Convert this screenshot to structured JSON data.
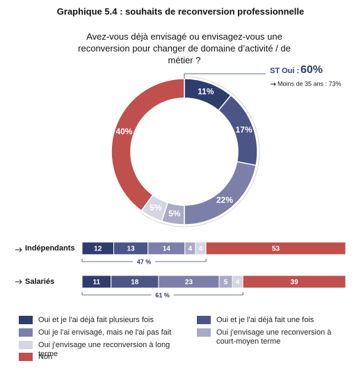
{
  "title": "Graphique 5.4 : souhaits de reconversion professionnelle",
  "subtitle": "Avez-vous déjà envisagé ou envisagez-vous une reconversion pour changer de domaine d’activité / de métier ?",
  "chart_data": [
    {
      "type": "donut",
      "values": [
        11,
        17,
        22,
        5,
        5,
        40
      ],
      "value_labels": [
        "11%",
        "17%",
        "22%",
        "5%",
        "5%",
        "40%"
      ],
      "colors": [
        "#2e3d6b",
        "#4b5586",
        "#7c80a8",
        "#a9aac6",
        "#d5d5e3",
        "#c0504d"
      ],
      "callout": {
        "label": "ST Oui :",
        "value": 60,
        "value_label": "60%"
      },
      "note": "Moins de 35 ans : 73%"
    },
    {
      "type": "bar",
      "orientation": "horizontal",
      "stacked": true,
      "categories": [
        "Indépendants",
        "Salariés"
      ],
      "xlim": [
        0,
        100
      ],
      "series": [
        {
          "name": "Oui et je l'ai déjà fait plusieurs fois",
          "color": "#2e3d6b",
          "values": [
            12,
            11
          ]
        },
        {
          "name": "Oui et je l'ai déjà fait une fois",
          "color": "#4b5586",
          "values": [
            13,
            18
          ]
        },
        {
          "name": "Oui je l'ai envisagé, mais ne l'ai pas fait",
          "color": "#7c80a8",
          "values": [
            14,
            23
          ]
        },
        {
          "name": "Oui j'envisage une reconversion à court-moyen terme",
          "color": "#a9aac6",
          "values": [
            4,
            5
          ]
        },
        {
          "name": "Oui j'envisage une reconversion à long terme",
          "color": "#d5d5e3",
          "values": [
            4,
            4
          ]
        },
        {
          "name": "Non",
          "color": "#c0504d",
          "values": [
            53,
            39
          ]
        }
      ],
      "brackets": [
        {
          "value": 47,
          "label": "47 %"
        },
        {
          "value": 61,
          "label": "61 %"
        }
      ]
    }
  ]
}
